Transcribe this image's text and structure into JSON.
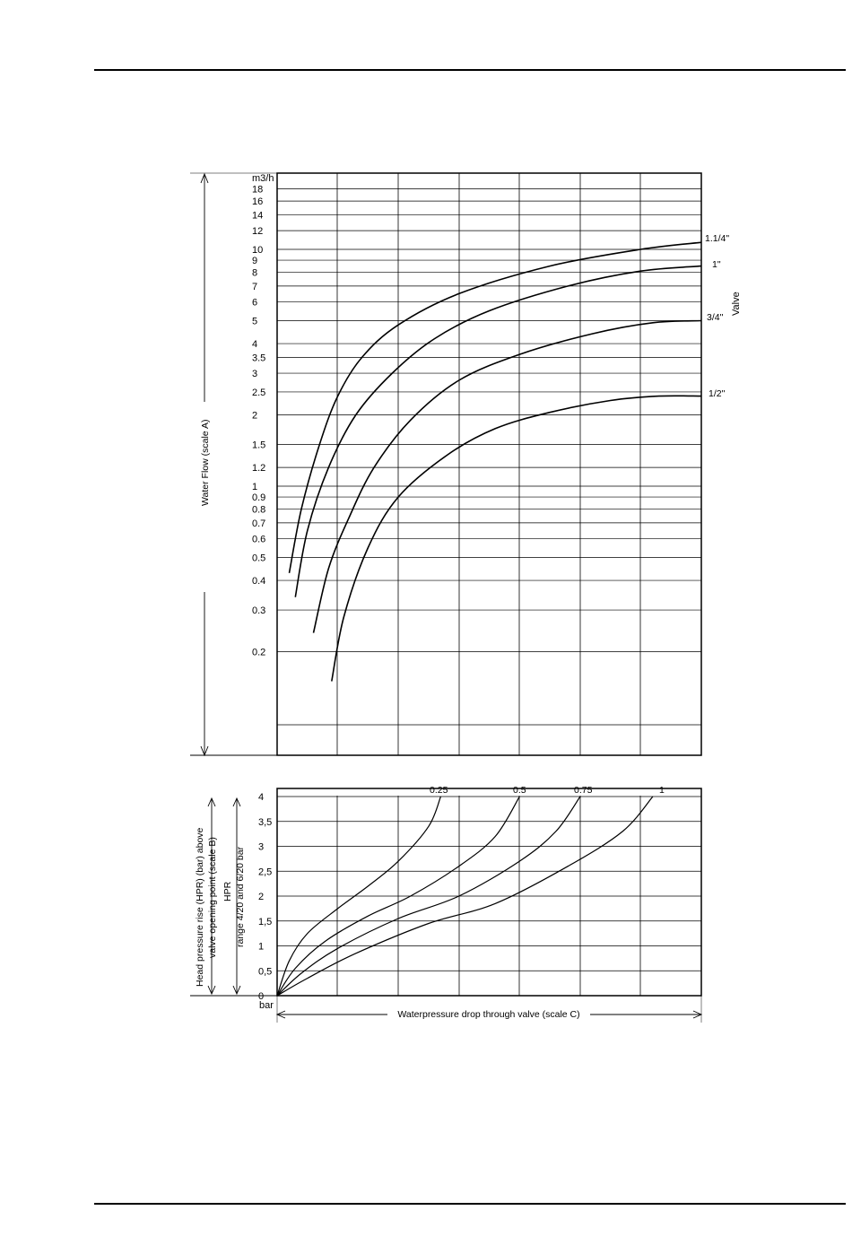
{
  "chart_data": [
    {
      "type": "line",
      "yscale": "log",
      "ylabel": "Water Flow (scale A)",
      "yunit": "m3/h",
      "ylim": [
        0.1,
        20
      ],
      "y_tick_labels": [
        "18",
        "16",
        "14",
        "12",
        "10",
        "9",
        "8",
        "7",
        "6",
        "5",
        "4",
        "3.5",
        "3",
        "2.5",
        "2",
        "1.5",
        "1.2",
        "1",
        "0.9",
        "0.8",
        "0.7",
        "0.6",
        "0.5",
        "0.4",
        "0.3",
        "0.2"
      ],
      "y_tick_values": [
        18,
        16,
        14,
        12,
        10,
        9,
        8,
        7,
        6,
        5,
        4,
        3.5,
        3,
        2.5,
        2,
        1.5,
        1.2,
        1,
        0.9,
        0.8,
        0.7,
        0.6,
        0.5,
        0.4,
        0.3,
        0.2
      ],
      "x_gridlines": 7,
      "legend_title": "Valve",
      "series": [
        {
          "name": "1.1/4\"",
          "x": [
            0.2,
            0.4,
            0.7,
            1.0,
            1.4,
            2.0,
            3.0,
            4.5,
            6.0,
            7.0
          ],
          "y": [
            0.43,
            0.8,
            1.5,
            2.4,
            3.5,
            4.8,
            6.5,
            8.5,
            10.0,
            10.7
          ]
        },
        {
          "name": "1\"",
          "x": [
            0.3,
            0.5,
            0.85,
            1.3,
            1.9,
            2.6,
            3.5,
            4.8,
            6.0,
            7.0
          ],
          "y": [
            0.34,
            0.65,
            1.2,
            2.0,
            3.0,
            4.2,
            5.5,
            7.0,
            8.1,
            8.5
          ]
        },
        {
          "name": "3/4\"",
          "x": [
            0.6,
            0.85,
            1.2,
            1.6,
            2.2,
            3.0,
            4.0,
            5.2,
            6.2,
            7.0
          ],
          "y": [
            0.24,
            0.45,
            0.75,
            1.2,
            1.9,
            2.8,
            3.6,
            4.4,
            4.9,
            5.0
          ]
        },
        {
          "name": "1/2\"",
          "x": [
            0.9,
            1.1,
            1.5,
            2.0,
            2.8,
            3.6,
            4.5,
            5.5,
            6.3,
            7.0
          ],
          "y": [
            0.15,
            0.28,
            0.55,
            0.9,
            1.35,
            1.75,
            2.05,
            2.3,
            2.4,
            2.4
          ]
        }
      ]
    },
    {
      "type": "line",
      "ylabel": "Head pressure rise (HPR) (bar) above valve opening point (scale B)",
      "ylabel2": "HPR range 4/20 and 6/20 bar",
      "xlabel": "Waterpressure drop through valve (scale C)",
      "x_origin_label": "bar",
      "ylim": [
        0,
        4
      ],
      "y_tick_labels": [
        "4",
        "3,5",
        "3",
        "2,5",
        "2",
        "1,5",
        "1",
        "0,5",
        "0"
      ],
      "y_tick_values": [
        4,
        3.5,
        3,
        2.5,
        2,
        1.5,
        1,
        0.5,
        0
      ],
      "x_gridlines": 7,
      "series": [
        {
          "name": "0.25",
          "x": [
            0,
            0.2,
            0.5,
            1.0,
            1.5,
            2.0,
            2.5,
            2.7
          ],
          "y": [
            0,
            0.7,
            1.25,
            1.75,
            2.2,
            2.7,
            3.4,
            4.0
          ]
        },
        {
          "name": "0.5",
          "x": [
            0,
            0.3,
            0.8,
            1.5,
            2.2,
            3.0,
            3.6,
            4.0
          ],
          "y": [
            0,
            0.55,
            1.1,
            1.6,
            2.0,
            2.6,
            3.2,
            4.0
          ]
        },
        {
          "name": "0.75",
          "x": [
            0,
            0.4,
            1.0,
            2.0,
            3.0,
            4.0,
            4.6,
            5.0
          ],
          "y": [
            0,
            0.45,
            0.95,
            1.55,
            2.0,
            2.7,
            3.3,
            4.0
          ]
        },
        {
          "name": "1",
          "x": [
            0,
            0.5,
            1.3,
            2.5,
            3.6,
            4.8,
            5.7,
            6.2
          ],
          "y": [
            0,
            0.35,
            0.85,
            1.45,
            1.85,
            2.6,
            3.3,
            4.0
          ]
        }
      ]
    }
  ]
}
